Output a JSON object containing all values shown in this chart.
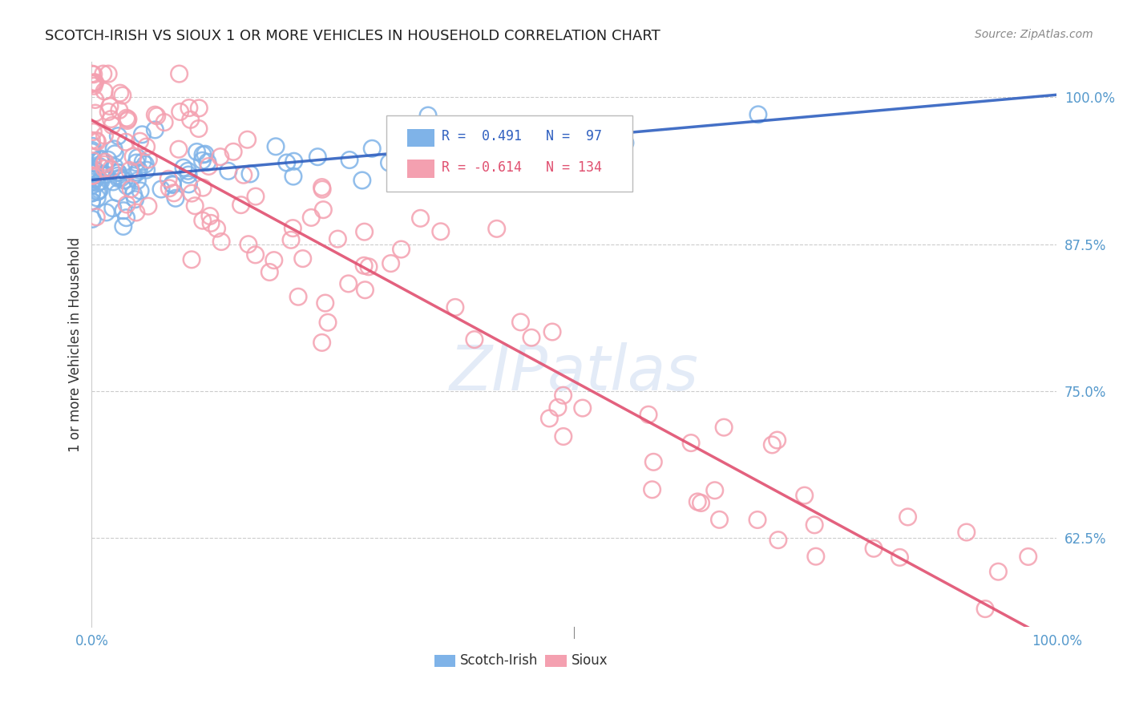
{
  "title": "SCOTCH-IRISH VS SIOUX 1 OR MORE VEHICLES IN HOUSEHOLD CORRELATION CHART",
  "source": "Source: ZipAtlas.com",
  "ylabel": "1 or more Vehicles in Household",
  "watermark": "ZIPatlas",
  "xmin": 0.0,
  "xmax": 1.0,
  "ymin": 0.55,
  "ymax": 1.03,
  "yticks": [
    0.625,
    0.75,
    0.875,
    1.0
  ],
  "ytick_labels": [
    "62.5%",
    "75.0%",
    "87.5%",
    "100.0%"
  ],
  "xtick_labels": [
    "0.0%",
    "100.0%"
  ],
  "legend_blue_R": "0.491",
  "legend_blue_N": "97",
  "legend_pink_R": "-0.614",
  "legend_pink_N": "134",
  "blue_color": "#7fb3e8",
  "pink_color": "#f4a0b0",
  "blue_line_color": "#3060c0",
  "pink_line_color": "#e05070",
  "background_color": "#ffffff",
  "grid_color": "#cccccc"
}
